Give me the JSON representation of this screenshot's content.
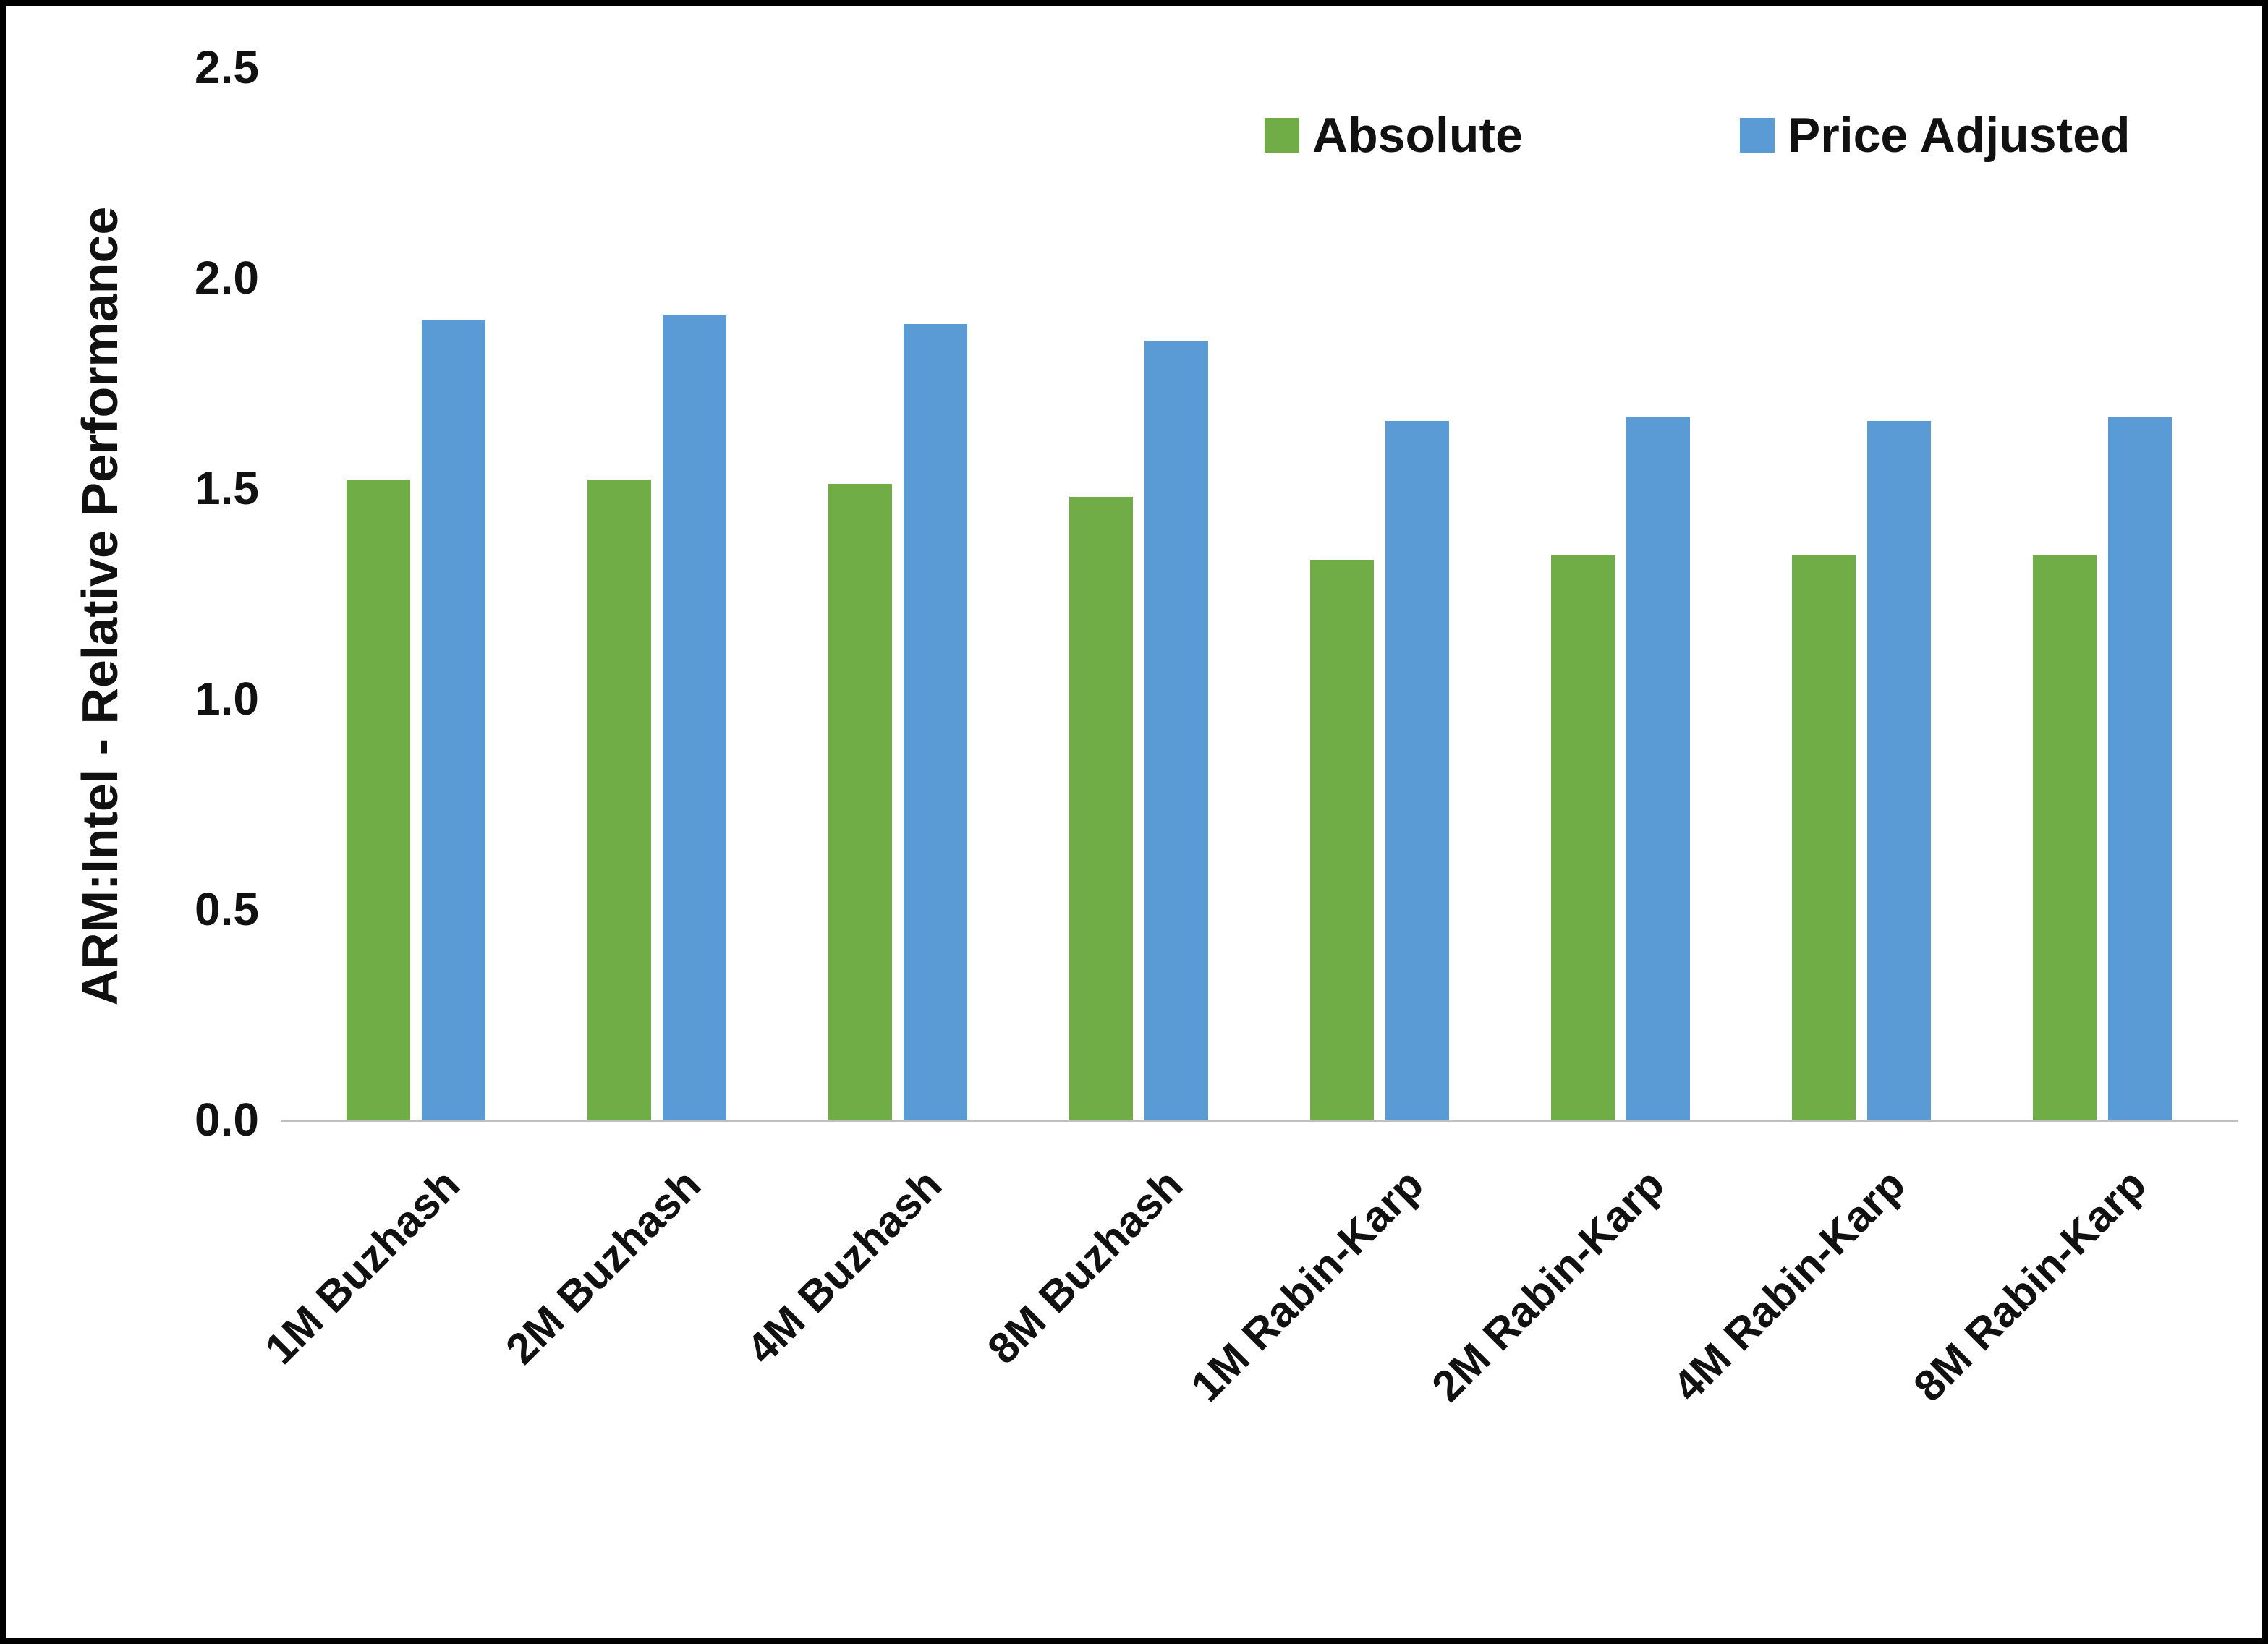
{
  "chart_data": {
    "type": "bar",
    "title": "",
    "ylabel": "ARM:Intel - Relative Performance",
    "xlabel": "",
    "ylim": [
      0,
      2.5
    ],
    "ytick_step": 0.5,
    "ytick_labels": [
      "0.0",
      "0.5",
      "1.0",
      "1.5",
      "2.0",
      "2.5"
    ],
    "grid": false,
    "legend_position": "top-right",
    "categories": [
      "1M Buzhash",
      "2M Buzhash",
      "4M Buzhash",
      "8M Buzhash",
      "1M Rabin-Karp",
      "2M Rabin-Karp",
      "4M Rabin-Karp",
      "8M Rabin-Karp"
    ],
    "series": [
      {
        "name": "Absolute",
        "color": "#70AD47",
        "values": [
          1.52,
          1.52,
          1.51,
          1.48,
          1.33,
          1.34,
          1.34,
          1.34
        ]
      },
      {
        "name": "Price Adjusted",
        "color": "#5B9BD5",
        "values": [
          1.9,
          1.91,
          1.89,
          1.85,
          1.66,
          1.67,
          1.66,
          1.67
        ]
      }
    ]
  },
  "colors": {
    "absolute": "#70AD47",
    "price_adjusted": "#5B9BD5",
    "axis_line": "#bfbfbf",
    "text": "#111111",
    "frame_border": "#000000"
  }
}
